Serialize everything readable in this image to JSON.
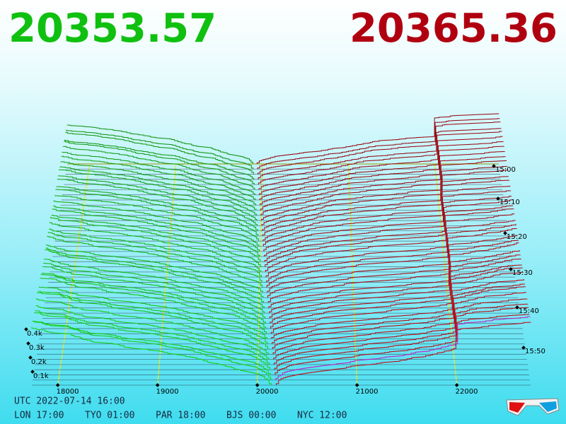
{
  "header": {
    "bid_price": "20353.57",
    "ask_price": "20365.36"
  },
  "axis": {
    "price_ticks": [
      "18000",
      "19000",
      "20000",
      "21000",
      "22000"
    ],
    "depth_ticks": [
      "0.1k",
      "0.2k",
      "0.3k",
      "0.4k"
    ],
    "time_ticks": [
      "15:00",
      "15:10",
      "15:20",
      "15:30",
      "15:40",
      "15:50"
    ]
  },
  "footer": {
    "utc": "UTC 2022-07-14 16:00",
    "zones": [
      "LON 17:00",
      "TYO 01:00",
      "PAR 18:00",
      "BJS 00:00",
      "NYC 12:00"
    ]
  }
}
